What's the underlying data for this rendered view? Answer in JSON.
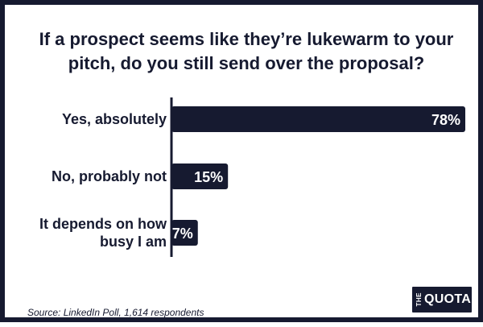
{
  "chart_data": {
    "type": "bar",
    "orientation": "horizontal",
    "title": "If a prospect seems like they’re lukewarm to your pitch, do you still send over the proposal?",
    "categories": [
      [
        "Yes, absolutely"
      ],
      [
        "No, probably not"
      ],
      [
        "It depends on how",
        "busy I am"
      ]
    ],
    "values": [
      78,
      15,
      7
    ],
    "value_labels": [
      "78%",
      "15%",
      "7%"
    ],
    "unit": "%",
    "xlim": [
      0,
      78
    ],
    "grid": false,
    "legend": "none",
    "bar_color": "#161a30"
  },
  "source": "Source: LinkedIn Poll, 1,614 respondents",
  "logo": {
    "the": "THE",
    "quota": "QUOTA"
  },
  "colors": {
    "primary": "#161a30",
    "background": "#ffffff"
  }
}
